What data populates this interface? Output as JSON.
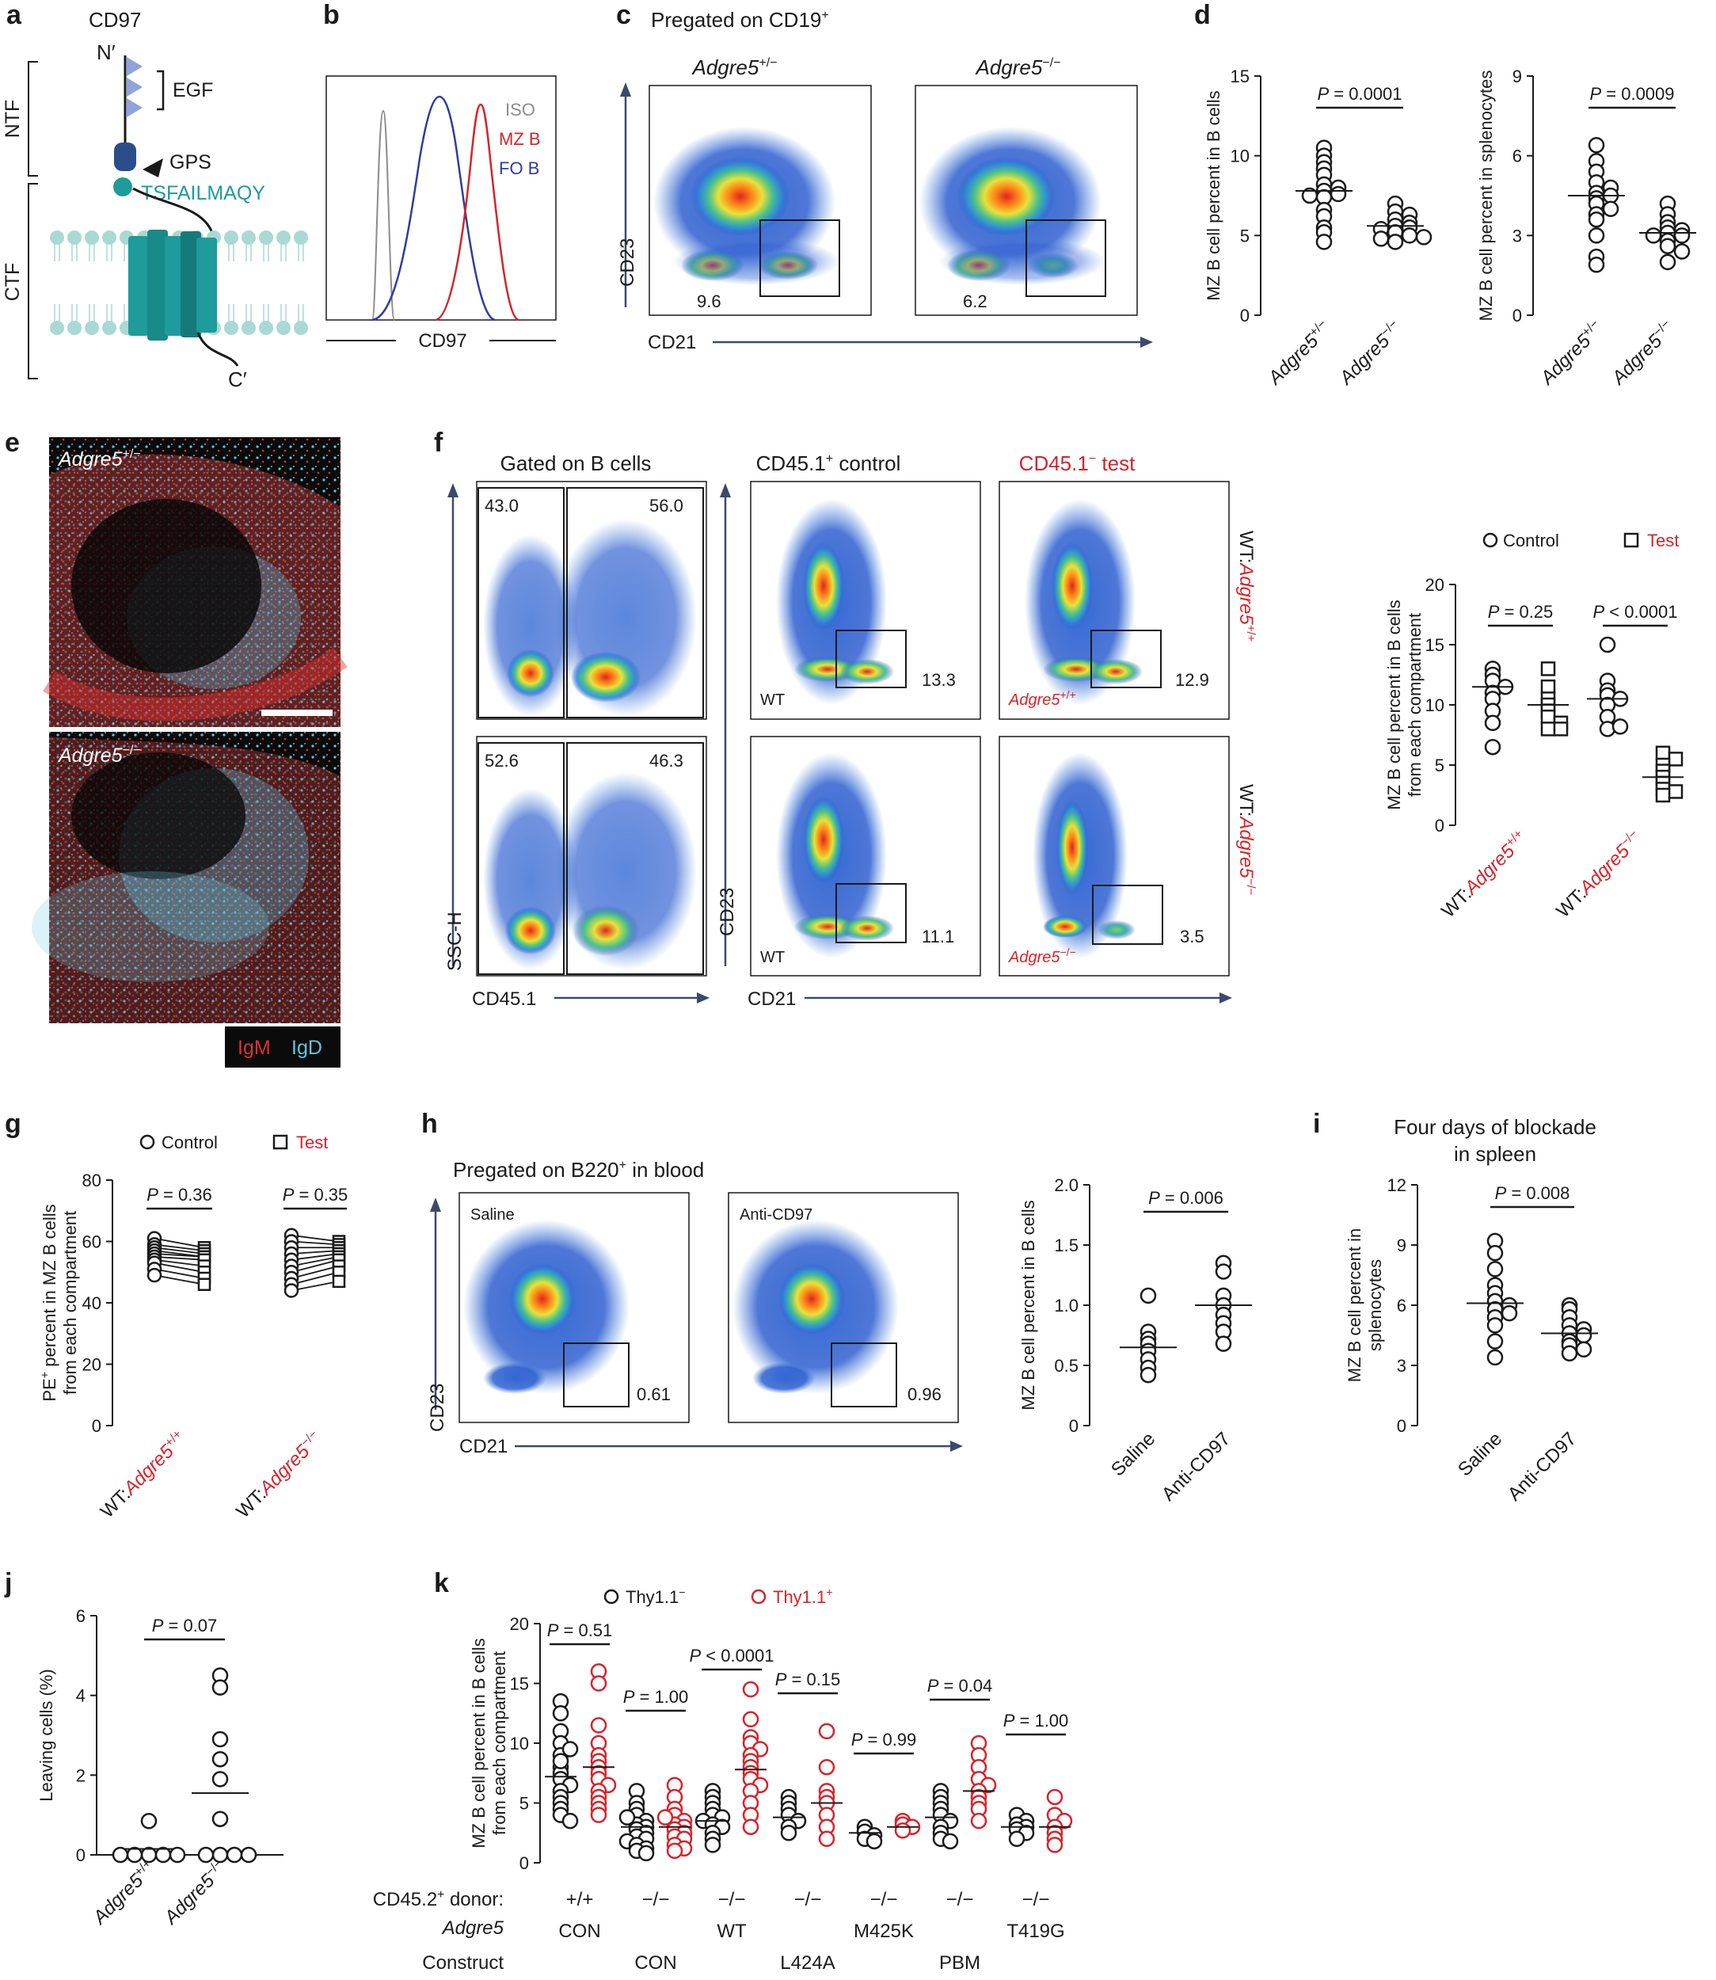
{
  "colors": {
    "black": "#1a1a1a",
    "red": "#d6232b",
    "teal": "#1e9b9b",
    "navy": "#2b4d8c",
    "gray": "#8c8c8c",
    "arrow": "#3a4a6b",
    "membrane": "#a9d9d3",
    "lightblue": "#3f7fdc",
    "blue": "#2e3d9e"
  },
  "panel_a": {
    "letter": "a",
    "title": "CD97",
    "n_term": "N′",
    "c_term": "C′",
    "egf": "EGF",
    "gps": "GPS",
    "peptide": "TSFAILMAQY",
    "ntf": "NTF",
    "ctf": "CTF"
  },
  "panel_b": {
    "letter": "b",
    "xlabel": "CD97",
    "legend": [
      "ISO",
      "MZ B",
      "FO B"
    ]
  },
  "panel_c": {
    "letter": "c",
    "title": "Pregated on CD19",
    "title_sup": "+",
    "plots": [
      {
        "genotype": "Adgre5",
        "sup": "+/−",
        "gate": "9.6"
      },
      {
        "genotype": "Adgre5",
        "sup": "−/−",
        "gate": "6.2"
      }
    ],
    "xlabel": "CD21",
    "ylabel": "CD23"
  },
  "panel_d": {
    "letter": "d",
    "groups": [
      {
        "genotype": "Adgre5",
        "sup": "+/−"
      },
      {
        "genotype": "Adgre5",
        "sup": "−/−"
      }
    ],
    "charts": [
      {
        "ylabel": "MZ B cell percent in B cells",
        "ticks": [
          "0",
          "5",
          "10",
          "15"
        ],
        "ylim": [
          0,
          15
        ],
        "p_label": "P",
        "p_value": " = 0.0001",
        "medians": [
          7.8,
          5.6
        ],
        "series": [
          [
            10.5,
            10.0,
            9.6,
            9.2,
            8.8,
            8.2,
            8.0,
            7.8,
            7.6,
            7.5,
            7.4,
            6.6,
            6.2,
            5.5,
            5.2,
            4.6
          ],
          [
            7.0,
            6.5,
            6.3,
            6.0,
            5.8,
            5.6,
            5.5,
            5.4,
            5.2,
            5.0,
            4.8,
            4.6,
            4.9
          ]
        ]
      },
      {
        "ylabel": "MZ B cell percent in splenocytes",
        "ticks": [
          "0",
          "3",
          "6",
          "9"
        ],
        "ylim": [
          0,
          9
        ],
        "p_label": "P",
        "p_value": " = 0.0009",
        "medians": [
          4.5,
          3.1
        ],
        "series": [
          [
            6.4,
            5.8,
            5.4,
            5.0,
            4.8,
            4.6,
            4.5,
            4.4,
            4.2,
            4.0,
            3.8,
            3.6,
            3.0,
            2.2,
            1.9
          ],
          [
            4.2,
            3.8,
            3.5,
            3.3,
            3.2,
            3.1,
            3.0,
            3.0,
            2.8,
            2.6,
            2.4,
            2.0
          ]
        ]
      }
    ]
  },
  "panel_e": {
    "letter": "e",
    "labels": [
      {
        "genotype": "Adgre5",
        "sup": "+/−"
      },
      {
        "genotype": "Adgre5",
        "sup": "−/−"
      }
    ],
    "legend": [
      "IgM",
      "IgD"
    ]
  },
  "panel_f": {
    "letter": "f",
    "headers": {
      "gated": "Gated on B cells",
      "control": "CD45.1",
      "control_sup": "+",
      "control_rest": " control",
      "test": "CD45.1",
      "test_sup": "−",
      "test_rest": " test"
    },
    "rows": [
      {
        "gates": [
          "43.0",
          "56.0"
        ],
        "ctrl_gate": "13.3",
        "test_gate": "12.9",
        "wt": "WT",
        "test_geno": "Adgre5",
        "test_sup": "+/+",
        "side": "WT:",
        "side_geno": "Adgre5",
        "side_sup": "+/+"
      },
      {
        "gates": [
          "52.6",
          "46.3"
        ],
        "ctrl_gate": "11.1",
        "test_gate": "3.5",
        "wt": "WT",
        "test_geno": "Adgre5",
        "test_sup": "−/−",
        "side": "WT:",
        "side_geno": "Adgre5",
        "side_sup": "−/−"
      }
    ],
    "xlabels": [
      "CD45.1",
      "CD21"
    ],
    "ylabels": [
      "SSC-H",
      "CD23"
    ],
    "chart": {
      "ylabel": [
        "MZ B cell percent in B cells",
        "from each compartment"
      ],
      "ticks": [
        "0",
        "5",
        "10",
        "15",
        "20"
      ],
      "ylim": [
        0,
        20
      ],
      "legend": [
        "Control",
        "Test"
      ],
      "groups": [
        {
          "pre": "WT:",
          "geno": "Adgre5",
          "sup": "+/+",
          "p_label": "P",
          "p_value": " = 0.25"
        },
        {
          "pre": "WT:",
          "geno": "Adgre5",
          "sup": "−/−",
          "p_label": "P",
          "p_value": " < 0.0001"
        }
      ],
      "medians": [
        [
          11.5,
          10.0
        ],
        [
          10.5,
          4.0
        ]
      ],
      "control": [
        [
          13.0,
          12.5,
          12.0,
          11.5,
          11.0,
          10.5,
          9.5,
          8.5,
          6.5
        ],
        [
          15.0,
          12.0,
          11.2,
          10.8,
          10.5,
          10.0,
          9.0,
          8.0,
          8.2
        ]
      ],
      "test": [
        [
          13.0,
          11.5,
          10.5,
          10.0,
          9.5,
          9.0,
          8.5,
          8.0,
          8.0
        ],
        [
          6.0,
          5.5,
          5.0,
          4.5,
          4.0,
          3.5,
          3.0,
          2.8,
          2.5
        ]
      ]
    }
  },
  "panel_g": {
    "letter": "g",
    "ylabel": [
      "PE",
      "+",
      " percent in MZ B cells",
      "from each compartment"
    ],
    "ticks": [
      "0",
      "20",
      "40",
      "60",
      "80"
    ],
    "ylim": [
      0,
      80
    ],
    "legend": [
      "Control",
      "Test"
    ],
    "groups": [
      {
        "pre": "WT:",
        "geno": "Adgre5",
        "sup": "+/+",
        "p_label": "P",
        "p_value": " = 0.36"
      },
      {
        "pre": "WT:",
        "geno": "Adgre5",
        "sup": "−/−",
        "p_label": "P",
        "p_value": " = 0.35"
      }
    ],
    "pairs": [
      [
        [
          61,
          58
        ],
        [
          59,
          57
        ],
        [
          58,
          56
        ],
        [
          57,
          55
        ],
        [
          56,
          55
        ],
        [
          55,
          54
        ],
        [
          54,
          52
        ],
        [
          53,
          50
        ],
        [
          51,
          48
        ],
        [
          49,
          46
        ]
      ],
      [
        [
          62,
          60
        ],
        [
          60,
          59
        ],
        [
          58,
          58
        ],
        [
          56,
          57
        ],
        [
          54,
          56
        ],
        [
          52,
          55
        ],
        [
          50,
          54
        ],
        [
          48,
          52
        ],
        [
          46,
          50
        ],
        [
          44,
          47
        ]
      ]
    ]
  },
  "panel_h": {
    "letter": "h",
    "title": "Pregated on B220",
    "title_sup": "+",
    "title_rest": " in blood",
    "plots": [
      {
        "label": "Saline",
        "gate": "0.61"
      },
      {
        "label": "Anti-CD97",
        "gate": "0.96"
      }
    ],
    "xlabel": "CD21",
    "ylabel": "CD23",
    "chart": {
      "ylabel": "MZ B cell percent in B cells",
      "ticks": [
        "0",
        "0.5",
        "1.0",
        "1.5",
        "2.0"
      ],
      "ylim": [
        0,
        2.0
      ],
      "p_label": "P",
      "p_value": " = 0.006",
      "groups": [
        "Saline",
        "Anti-CD97"
      ],
      "medians": [
        0.65,
        1.0
      ],
      "series": [
        [
          1.08,
          0.78,
          0.72,
          0.68,
          0.62,
          0.55,
          0.48,
          0.42
        ],
        [
          1.35,
          1.28,
          1.08,
          1.0,
          0.92,
          0.85,
          0.78,
          0.68
        ]
      ]
    }
  },
  "panel_i": {
    "letter": "i",
    "title": [
      "Four days of  blockade",
      "in spleen"
    ],
    "ylabel": [
      "MZ B cell percent in",
      "splenocytes"
    ],
    "ticks": [
      "0",
      "3",
      "6",
      "9",
      "12"
    ],
    "ylim": [
      0,
      12
    ],
    "p_label": "P",
    "p_value": " = 0.008",
    "groups": [
      "Saline",
      "Anti-CD97"
    ],
    "medians": [
      6.1,
      4.6
    ],
    "series": [
      [
        9.2,
        8.6,
        7.8,
        7.0,
        6.6,
        6.2,
        6.0,
        5.8,
        5.6,
        5.4,
        5.0,
        4.2,
        3.4
      ],
      [
        6.0,
        5.8,
        5.4,
        5.0,
        4.8,
        4.6,
        4.5,
        4.2,
        4.0,
        3.8,
        3.6
      ]
    ]
  },
  "panel_j": {
    "letter": "j",
    "ylabel": "Leaving cells (%)",
    "ticks": [
      "0",
      "2",
      "4",
      "6"
    ],
    "ylim": [
      0,
      6
    ],
    "p_label": "P",
    "p_value": " = 0.07",
    "groups": [
      {
        "geno": "Adgre5",
        "sup": "+/+"
      },
      {
        "geno": "Adgre5",
        "sup": "−/−"
      }
    ],
    "medians": [
      0.15,
      1.55
    ],
    "series": [
      [
        0.85,
        0.0,
        0.0,
        0.0,
        0.0,
        0.0
      ],
      [
        4.5,
        4.2,
        2.9,
        2.4,
        1.9,
        0.9,
        0.0,
        0.0,
        0.0,
        0.0
      ]
    ]
  },
  "panel_k": {
    "letter": "k",
    "legend": [
      "Thy1.1",
      "Thy1.1"
    ],
    "legend_sup": [
      "−",
      "+"
    ],
    "ylabel": [
      "MZ B cell percent in B cells",
      "from each compartment"
    ],
    "ticks": [
      "0",
      "5",
      "10",
      "15",
      "20"
    ],
    "ylim": [
      0,
      20
    ],
    "donor_label": [
      "CD45.2",
      "+",
      " donor:"
    ],
    "donor_geno": "Adgre5",
    "construct_label": "Construct",
    "groups": [
      {
        "donor": "+/+",
        "construct": "CON",
        "p_label": "P",
        "p_value": " = 0.51",
        "medians": [
          7.2,
          8.0
        ],
        "neg": [
          13.5,
          12.5,
          11.0,
          10.0,
          9.0,
          8.0,
          7.5,
          7.0,
          6.5,
          6.0,
          5.5,
          5.0,
          4.5,
          4.0,
          3.5,
          9.5,
          8.5
        ],
        "pos": [
          16.0,
          15.0,
          11.5,
          10.0,
          9.0,
          8.5,
          8.0,
          7.5,
          7.0,
          6.5,
          6.0,
          5.5,
          5.0,
          4.5,
          4.0
        ]
      },
      {
        "donor": "−/−",
        "construct": "CON",
        "p_label": "P",
        "p_value": " = 1.00",
        "medians": [
          3.0,
          3.0
        ],
        "neg": [
          6.0,
          5.0,
          4.5,
          4.0,
          3.5,
          3.2,
          3.0,
          2.8,
          2.5,
          2.2,
          2.0,
          1.8,
          1.5,
          1.2,
          1.0,
          0.8,
          3.8
        ],
        "pos": [
          6.5,
          5.5,
          4.5,
          4.0,
          3.5,
          3.2,
          3.0,
          2.8,
          2.5,
          2.2,
          2.0,
          1.5,
          1.2,
          1.0,
          3.8
        ]
      },
      {
        "donor": "−/−",
        "construct": "WT",
        "p_label": "P",
        "p_value": " < 0.0001",
        "medians": [
          3.5,
          7.8
        ],
        "neg": [
          6.0,
          5.5,
          5.0,
          4.5,
          4.0,
          3.8,
          3.5,
          3.2,
          3.0,
          2.5,
          2.0,
          1.5
        ],
        "pos": [
          14.5,
          12.0,
          10.5,
          10.0,
          9.5,
          9.0,
          8.5,
          8.0,
          7.5,
          7.0,
          6.5,
          6.0,
          5.0,
          4.0,
          3.0
        ]
      },
      {
        "donor": "−/−",
        "construct": "L424A",
        "p_label": "P",
        "p_value": " = 0.15",
        "medians": [
          3.8,
          5.0
        ],
        "neg": [
          5.5,
          5.0,
          4.5,
          4.0,
          3.5,
          3.0,
          2.5
        ],
        "pos": [
          11.0,
          8.0,
          6.0,
          5.5,
          5.0,
          4.0,
          3.0,
          2.0
        ]
      },
      {
        "donor": "−/−",
        "construct": "M425K",
        "p_label": "P",
        "p_value": " = 0.99",
        "medians": [
          2.5,
          3.0
        ],
        "neg": [
          3.0,
          2.6,
          2.3,
          2.0,
          1.8
        ],
        "pos": [
          3.5,
          3.2,
          3.0,
          2.7
        ]
      },
      {
        "donor": "−/−",
        "construct": "PBM",
        "p_label": "P",
        "p_value": " = 0.04",
        "medians": [
          3.8,
          6.0
        ],
        "neg": [
          6.0,
          5.5,
          5.0,
          4.5,
          4.0,
          3.5,
          3.0,
          2.5,
          2.0,
          1.8
        ],
        "pos": [
          10.0,
          9.0,
          8.0,
          7.0,
          6.5,
          6.0,
          5.5,
          5.0,
          4.5,
          3.5
        ]
      },
      {
        "donor": "−/−",
        "construct": "T419G",
        "p_label": "P",
        "p_value": " = 1.00",
        "medians": [
          3.0,
          3.0
        ],
        "neg": [
          4.0,
          3.5,
          3.2,
          3.0,
          2.8,
          2.5,
          2.0
        ],
        "pos": [
          5.5,
          4.0,
          3.5,
          3.0,
          2.5,
          2.0,
          1.5
        ]
      }
    ]
  }
}
